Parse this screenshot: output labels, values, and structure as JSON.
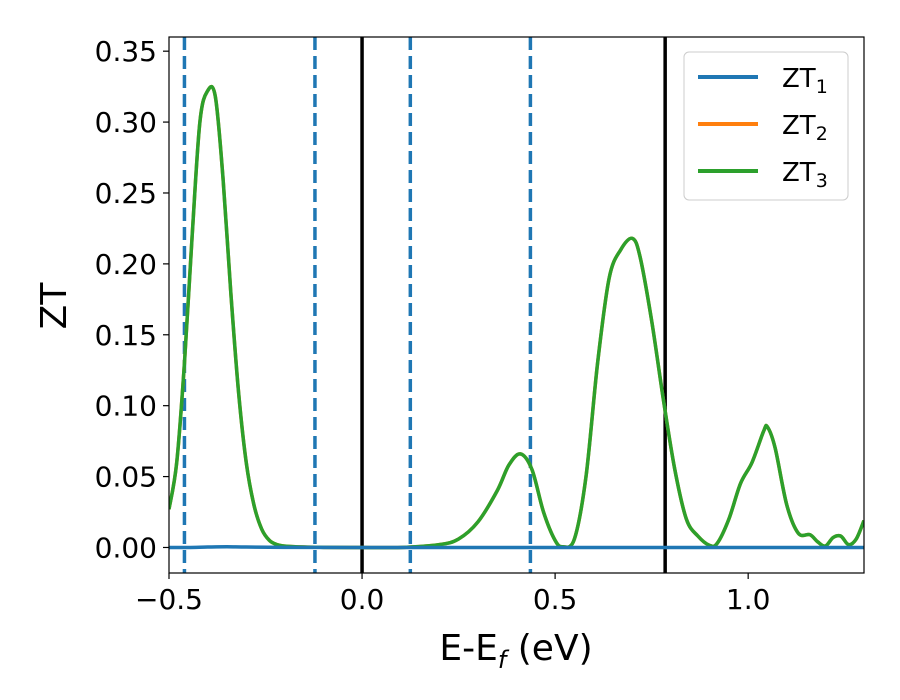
{
  "chart_data": {
    "type": "line",
    "xlabel": "E-E",
    "xlabel_sub": "f",
    "xlabel_unit": " (eV)",
    "ylabel": "ZT",
    "xlim": [
      -0.5,
      1.3
    ],
    "ylim": [
      -0.018,
      0.36
    ],
    "x_ticks": [
      -0.5,
      0.0,
      0.5,
      1.0
    ],
    "x_tick_labels": [
      "−0.5",
      "0.0",
      "0.5",
      "1.0"
    ],
    "y_ticks": [
      0.0,
      0.05,
      0.1,
      0.15,
      0.2,
      0.25,
      0.3,
      0.35
    ],
    "y_tick_labels": [
      "0.00",
      "0.05",
      "0.10",
      "0.15",
      "0.20",
      "0.25",
      "0.30",
      "0.35"
    ],
    "grid": false,
    "legend_position": "top-right",
    "series": [
      {
        "name": "ZT",
        "sub": "1",
        "color": "#1f77b4",
        "x": [
          -0.5,
          -0.45,
          -0.4,
          -0.35,
          -0.3,
          -0.2,
          0.0,
          0.5,
          1.0,
          1.3
        ],
        "y": [
          0.0,
          0.0,
          0.0003,
          0.0005,
          0.0003,
          0.0001,
          0.0,
          0.0,
          0.0,
          0.0
        ]
      },
      {
        "name": "ZT",
        "sub": "2",
        "color": "#ff7f0e",
        "x": [
          -0.5,
          -0.48,
          -0.46,
          -0.44,
          -0.42,
          -0.4,
          -0.38,
          -0.36,
          -0.34,
          -0.32,
          -0.3,
          -0.28,
          -0.26,
          -0.24,
          -0.22,
          -0.2,
          -0.15,
          -0.1,
          0.0,
          0.1,
          0.2,
          0.25,
          0.3,
          0.35,
          0.38,
          0.41,
          0.44,
          0.47,
          0.5,
          0.52,
          0.55,
          0.58,
          0.61,
          0.64,
          0.67,
          0.7,
          0.72,
          0.75,
          0.78,
          0.81,
          0.84,
          0.87,
          0.9,
          0.92,
          0.95,
          0.98,
          1.01,
          1.04,
          1.05,
          1.07,
          1.1,
          1.13,
          1.16,
          1.18,
          1.2,
          1.22,
          1.24,
          1.26,
          1.28,
          1.3
        ],
        "y": [
          0.027,
          0.06,
          0.13,
          0.22,
          0.3,
          0.322,
          0.318,
          0.26,
          0.18,
          0.11,
          0.06,
          0.03,
          0.013,
          0.005,
          0.002,
          0.001,
          0.0003,
          0.0001,
          0.0,
          0.0,
          0.002,
          0.006,
          0.018,
          0.04,
          0.058,
          0.066,
          0.055,
          0.025,
          0.005,
          0.0005,
          0.006,
          0.05,
          0.13,
          0.19,
          0.21,
          0.218,
          0.205,
          0.16,
          0.105,
          0.055,
          0.02,
          0.008,
          0.0015,
          0.003,
          0.02,
          0.045,
          0.06,
          0.082,
          0.085,
          0.07,
          0.03,
          0.01,
          0.009,
          0.004,
          0.001,
          0.007,
          0.008,
          0.002,
          0.006,
          0.019
        ]
      },
      {
        "name": "ZT",
        "sub": "3",
        "color": "#2ca02c",
        "x": [
          -0.5,
          -0.48,
          -0.46,
          -0.44,
          -0.42,
          -0.4,
          -0.38,
          -0.36,
          -0.34,
          -0.32,
          -0.3,
          -0.28,
          -0.26,
          -0.24,
          -0.22,
          -0.2,
          -0.15,
          -0.1,
          0.0,
          0.1,
          0.2,
          0.25,
          0.3,
          0.35,
          0.38,
          0.41,
          0.44,
          0.47,
          0.5,
          0.52,
          0.55,
          0.58,
          0.61,
          0.64,
          0.67,
          0.7,
          0.72,
          0.75,
          0.78,
          0.81,
          0.84,
          0.87,
          0.9,
          0.92,
          0.95,
          0.98,
          1.01,
          1.04,
          1.05,
          1.07,
          1.1,
          1.13,
          1.16,
          1.18,
          1.2,
          1.22,
          1.24,
          1.26,
          1.28,
          1.3
        ],
        "y": [
          0.027,
          0.06,
          0.13,
          0.22,
          0.3,
          0.322,
          0.318,
          0.26,
          0.18,
          0.11,
          0.06,
          0.03,
          0.013,
          0.005,
          0.002,
          0.001,
          0.0003,
          0.0001,
          0.0,
          0.0,
          0.002,
          0.006,
          0.018,
          0.04,
          0.058,
          0.066,
          0.055,
          0.025,
          0.005,
          0.0005,
          0.006,
          0.05,
          0.13,
          0.19,
          0.21,
          0.218,
          0.205,
          0.16,
          0.105,
          0.055,
          0.02,
          0.008,
          0.0015,
          0.003,
          0.02,
          0.045,
          0.06,
          0.082,
          0.085,
          0.07,
          0.03,
          0.01,
          0.009,
          0.004,
          0.001,
          0.007,
          0.008,
          0.002,
          0.006,
          0.019
        ]
      }
    ],
    "vlines_dashed": {
      "color": "#1f77b4",
      "x": [
        -0.46,
        -0.122,
        0.125,
        0.436
      ]
    },
    "vlines_solid": {
      "color": "#000000",
      "x": [
        0.0,
        0.785
      ]
    }
  }
}
